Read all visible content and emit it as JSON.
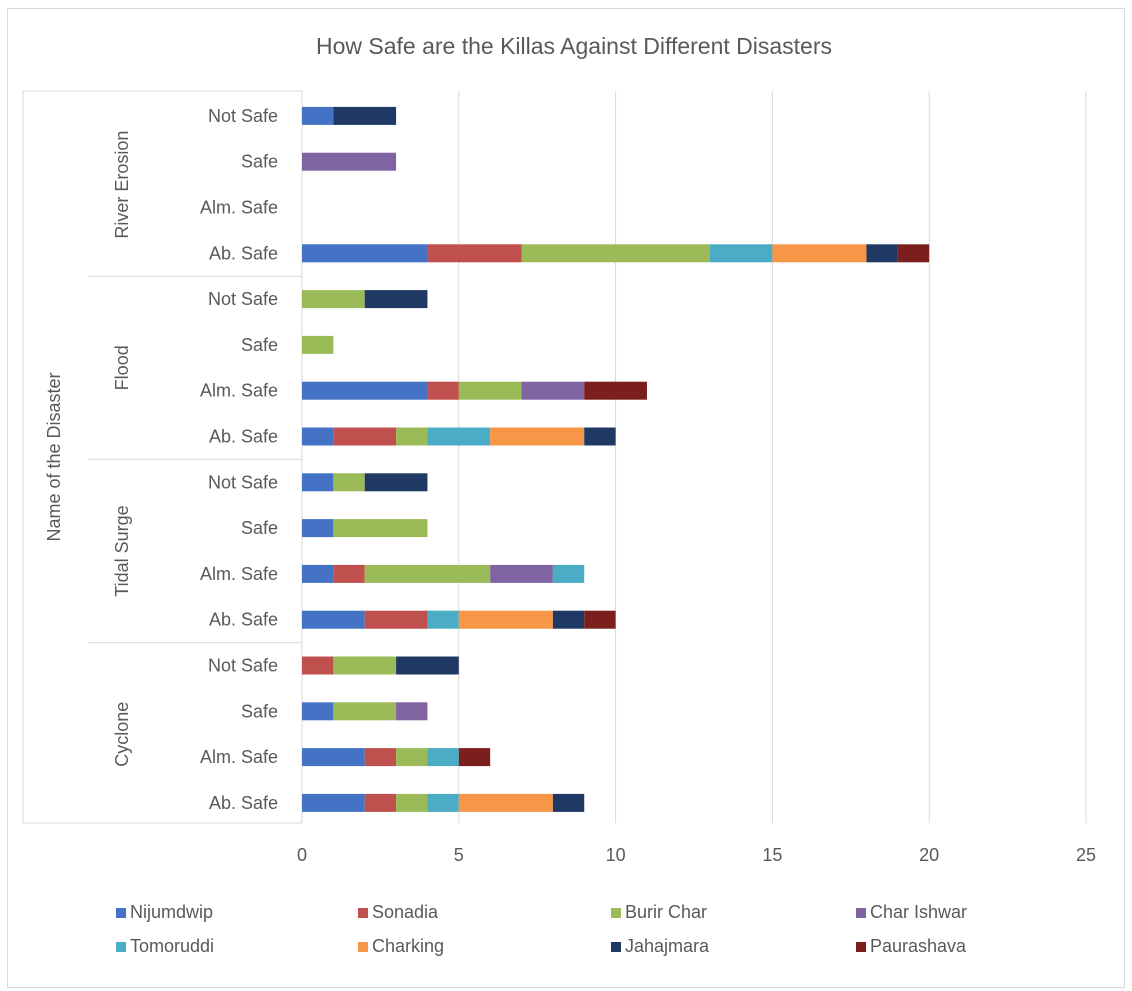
{
  "chart_data": {
    "type": "bar",
    "orientation": "horizontal",
    "stacked": true,
    "title": "How Safe are the Killas Against Different Disasters",
    "ylabel": "Name of the Disaster",
    "xlabel": "",
    "xlim": [
      0,
      25
    ],
    "xticks": [
      0,
      5,
      10,
      15,
      20,
      25
    ],
    "grid": true,
    "legend_position": "bottom",
    "groups": [
      {
        "name": "River Erosion",
        "categories": [
          "Not Safe",
          "Safe",
          "Alm. Safe",
          "Ab. Safe"
        ]
      },
      {
        "name": "Flood",
        "categories": [
          "Not Safe",
          "Safe",
          "Alm. Safe",
          "Ab. Safe"
        ]
      },
      {
        "name": "Tidal Surge",
        "categories": [
          "Not Safe",
          "Safe",
          "Alm. Safe",
          "Ab. Safe"
        ]
      },
      {
        "name": "Cyclone",
        "categories": [
          "Not Safe",
          "Safe",
          "Alm. Safe",
          "Ab. Safe"
        ]
      }
    ],
    "categories": [
      "River Erosion | Not Safe",
      "River Erosion | Safe",
      "River Erosion | Alm. Safe",
      "River Erosion | Ab. Safe",
      "Flood | Not Safe",
      "Flood | Safe",
      "Flood | Alm. Safe",
      "Flood | Ab. Safe",
      "Tidal Surge | Not Safe",
      "Tidal Surge | Safe",
      "Tidal Surge | Alm. Safe",
      "Tidal Surge | Ab. Safe",
      "Cyclone | Not Safe",
      "Cyclone | Safe",
      "Cyclone | Alm. Safe",
      "Cyclone | Ab. Safe"
    ],
    "series": [
      {
        "name": "Nijumdwip",
        "color": "#4472C4",
        "values": [
          1,
          0,
          0,
          4,
          0,
          0,
          4,
          1,
          1,
          1,
          1,
          2,
          0,
          1,
          2,
          2
        ]
      },
      {
        "name": "Sonadia",
        "color": "#C0504D",
        "values": [
          0,
          0,
          0,
          3,
          0,
          0,
          1,
          2,
          0,
          0,
          1,
          2,
          1,
          0,
          1,
          1
        ]
      },
      {
        "name": "Burir Char",
        "color": "#9BBB59",
        "values": [
          0,
          0,
          0,
          6,
          2,
          1,
          2,
          1,
          1,
          3,
          4,
          0,
          2,
          2,
          1,
          1
        ]
      },
      {
        "name": "Char Ishwar",
        "color": "#8064A2",
        "values": [
          0,
          3,
          0,
          0,
          0,
          0,
          2,
          0,
          0,
          0,
          2,
          0,
          0,
          1,
          0,
          0
        ]
      },
      {
        "name": "Tomoruddi",
        "color": "#4BACC6",
        "values": [
          0,
          0,
          0,
          2,
          0,
          0,
          0,
          2,
          0,
          0,
          1,
          1,
          0,
          0,
          1,
          1
        ]
      },
      {
        "name": "Charking",
        "color": "#F79646",
        "values": [
          0,
          0,
          0,
          3,
          0,
          0,
          0,
          3,
          0,
          0,
          0,
          3,
          0,
          0,
          0,
          3
        ]
      },
      {
        "name": "Jahajmara",
        "color": "#1F3864",
        "values": [
          2,
          0,
          0,
          1,
          2,
          0,
          0,
          1,
          2,
          0,
          0,
          1,
          2,
          0,
          0,
          1
        ]
      },
      {
        "name": "Paurashava",
        "color": "#7B1E1E",
        "values": [
          0,
          0,
          0,
          1,
          0,
          0,
          2,
          0,
          0,
          0,
          0,
          1,
          0,
          0,
          1,
          0
        ]
      }
    ]
  }
}
